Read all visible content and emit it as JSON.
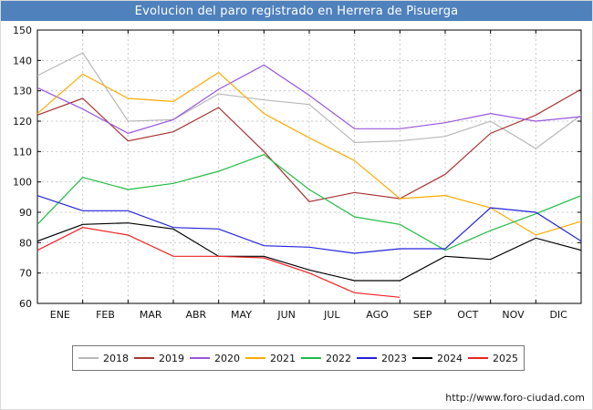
{
  "title": "Evolucion del paro registrado en Herrera de Pisuerga",
  "titlebar_color": "#4f81bd",
  "footer": {
    "url": "http://www.foro-ciudad.com"
  },
  "chart_data": {
    "type": "line",
    "title": "Evolucion del paro registrado en Herrera de Pisuerga",
    "x_labels": [
      "ENE",
      "FEB",
      "MAR",
      "ABR",
      "MAY",
      "JUN",
      "JUL",
      "AGO",
      "SEP",
      "OCT",
      "NOV",
      "DIC"
    ],
    "x_points_note": "13 evenly spaced points per series: first point on the y-axis, then one per vertical gridline; month labels centered between consecutive gridlines",
    "ylim": [
      60,
      150
    ],
    "y_ticks": [
      60,
      70,
      80,
      90,
      100,
      110,
      120,
      130,
      140,
      150
    ],
    "grid": true,
    "legend_position": "bottom-box",
    "series": [
      {
        "name": "2018",
        "color": "#b8b8b8",
        "values": [
          135,
          142.5,
          120,
          120.5,
          129,
          127,
          125.5,
          113,
          113.5,
          115,
          120,
          111,
          122
        ]
      },
      {
        "name": "2019",
        "color": "#aa3333",
        "values": [
          122,
          127.5,
          113.5,
          116.5,
          124.5,
          110,
          93.5,
          96.5,
          94.5,
          102.5,
          116,
          122,
          130.5
        ]
      },
      {
        "name": "2020",
        "color": "#9955dd",
        "values": [
          131,
          124,
          116,
          120.5,
          130.5,
          138.5,
          128.5,
          117.5,
          117.5,
          119.5,
          122.5,
          120,
          121.5
        ]
      },
      {
        "name": "2021",
        "color": "#ffaa00",
        "values": [
          122.5,
          135.5,
          127.5,
          126.5,
          136,
          122.5,
          114.5,
          107,
          94.5,
          95.5,
          91.5,
          82.5,
          87
        ]
      },
      {
        "name": "2022",
        "color": "#22bb44",
        "values": [
          86,
          101.5,
          97.5,
          99.5,
          103.5,
          109,
          97.5,
          88.5,
          86,
          77.5,
          84,
          89.5,
          95.5
        ]
      },
      {
        "name": "2023",
        "color": "#2222dd",
        "values": [
          95.5,
          90.5,
          90.5,
          85,
          84.5,
          79,
          78.5,
          76.5,
          78,
          78,
          91.5,
          90,
          80.5
        ]
      },
      {
        "name": "2024",
        "color": "#000000",
        "values": [
          80.5,
          86,
          86.5,
          84.5,
          75.5,
          75.5,
          71,
          67.5,
          67.5,
          75.5,
          74.5,
          81.5,
          77.5
        ]
      },
      {
        "name": "2025",
        "color": "#ee2222",
        "values": [
          77.5,
          85,
          82.5,
          75.5,
          75.5,
          75,
          70,
          63.5,
          62
        ]
      }
    ]
  }
}
